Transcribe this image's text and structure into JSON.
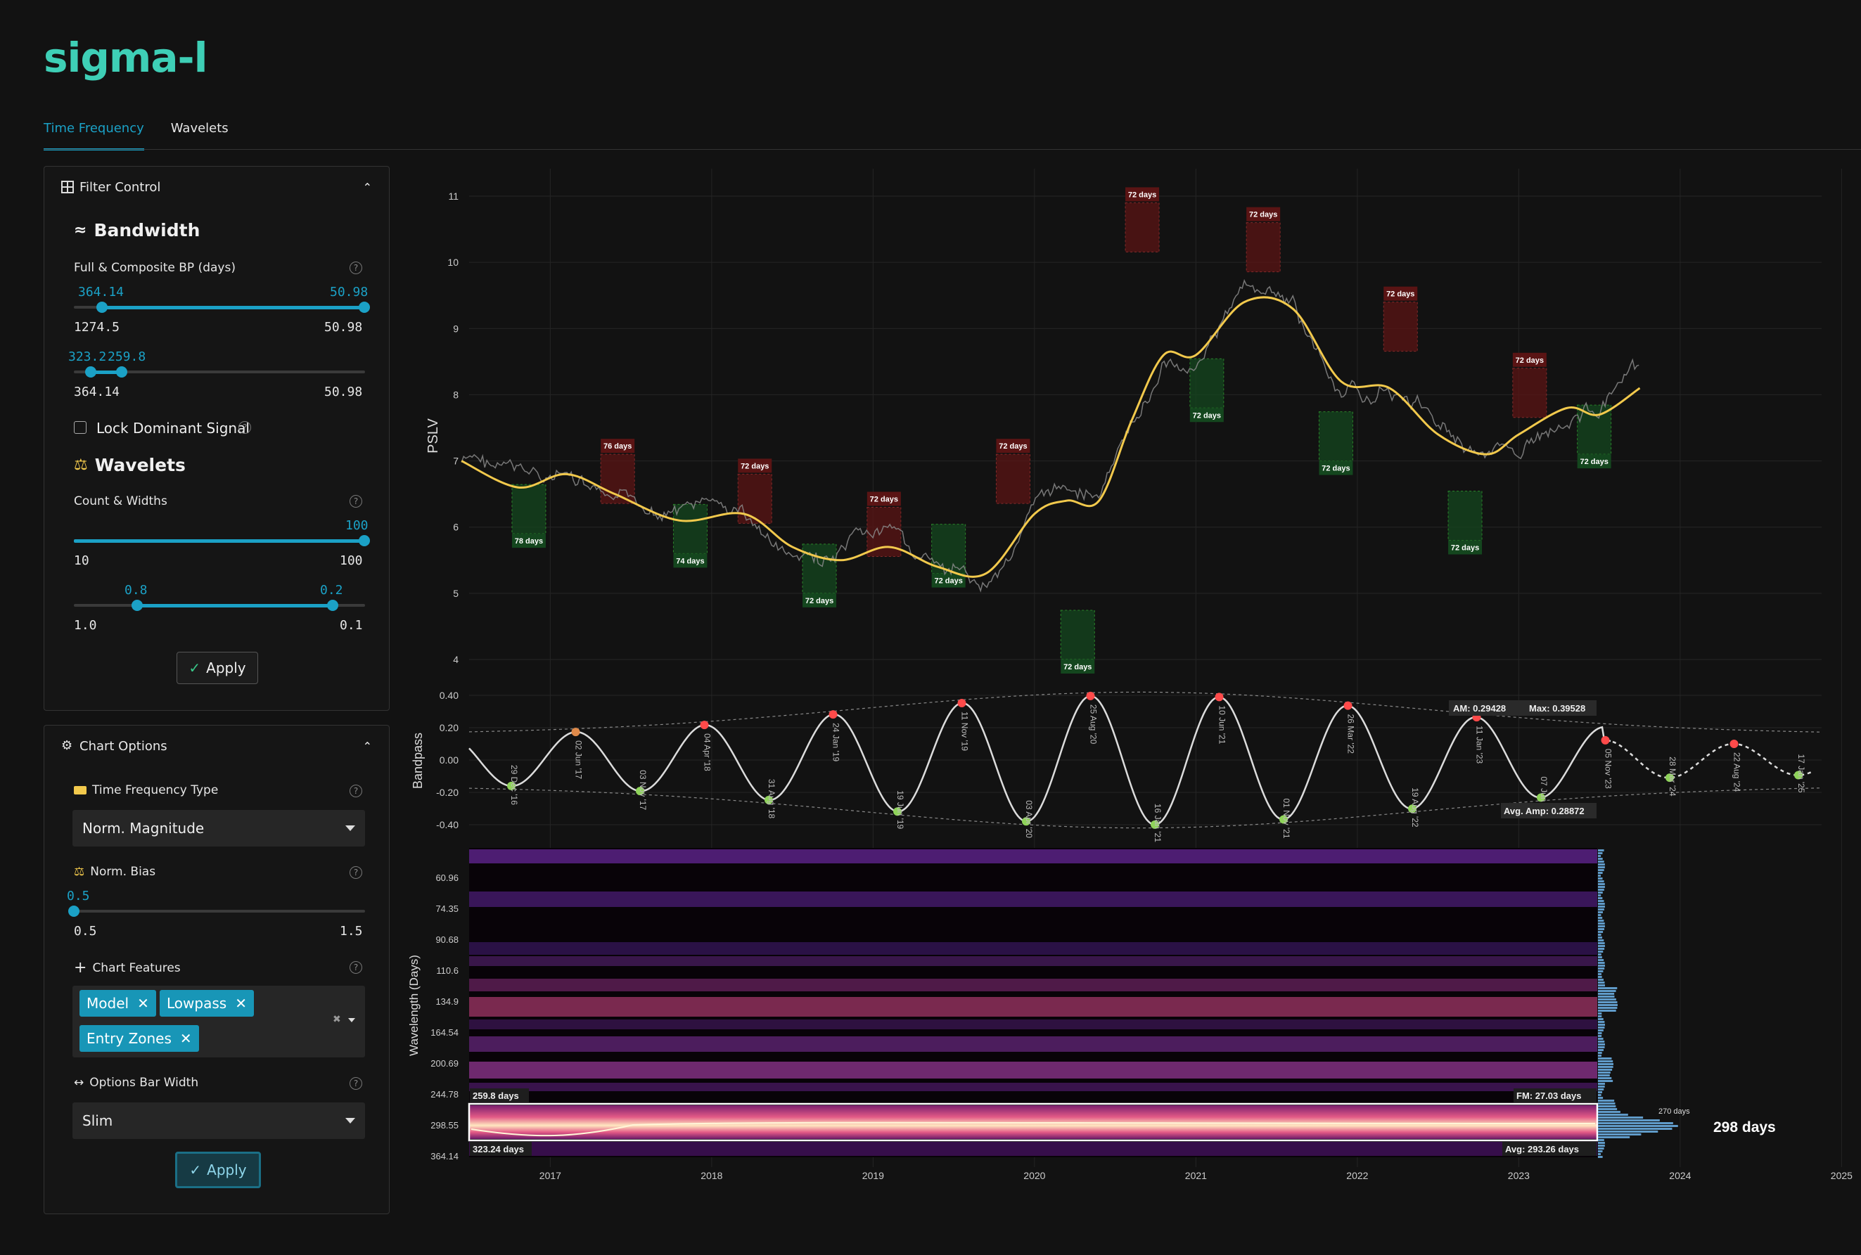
{
  "app": {
    "logo": "sigma-l"
  },
  "tabs": [
    {
      "label": "Time Frequency"
    },
    {
      "label": "Wavelets"
    }
  ],
  "filter_control": {
    "title": "Filter Control",
    "bandwidth": {
      "title": "Bandwidth",
      "full_composite_label": "Full & Composite BP (days)",
      "slider1": {
        "low_value": "364.14",
        "high_value": "50.98",
        "min_label": "1274.5",
        "max_label": "50.98"
      },
      "slider2": {
        "low_value": "323.2",
        "high_value": "259.8",
        "min_label": "364.14",
        "max_label": "50.98"
      },
      "lock_label": "Lock Dominant Signal"
    },
    "wavelets": {
      "title": "Wavelets",
      "count_widths_label": "Count & Widths",
      "slider1": {
        "value": "100",
        "min_label": "10",
        "max_label": "100"
      },
      "slider2": {
        "low_value": "0.8",
        "high_value": "0.2",
        "min_label": "1.0",
        "max_label": "0.1"
      }
    },
    "apply_label": "Apply"
  },
  "chart_options": {
    "title": "Chart Options",
    "tf_type_label": "Time Frequency Type",
    "tf_type_value": "Norm. Magnitude",
    "norm_bias_label": "Norm. Bias",
    "norm_bias": {
      "value": "0.5",
      "min_label": "0.5",
      "max_label": "1.5"
    },
    "chart_features_label": "Chart Features",
    "chart_features": [
      "Model",
      "Lowpass",
      "Entry Zones"
    ],
    "bar_width_label": "Options Bar Width",
    "bar_width_value": "Slim",
    "apply_label": "Apply"
  },
  "chart_data": [
    {
      "type": "line",
      "ylabel": "PSLV",
      "ylim": [
        4,
        11
      ],
      "yticks": [
        "4",
        "5",
        "6",
        "7",
        "8",
        "9",
        "10",
        "11"
      ],
      "x_ticks": [
        "2017",
        "2018",
        "2019",
        "2020",
        "2021",
        "2022",
        "2023",
        "2024",
        "2025"
      ],
      "series": [
        {
          "x": [
            2016.45,
            2016.8,
            2017.1,
            2017.4,
            2017.8,
            2018.2,
            2018.5,
            2018.8,
            2019.1,
            2019.4,
            2019.7,
            2020.0,
            2020.2,
            2020.4,
            2020.6,
            2020.8,
            2021.0,
            2021.3,
            2021.6,
            2021.9,
            2022.2,
            2022.5,
            2022.8,
            2023.0,
            2023.3,
            2023.5,
            2023.75
          ],
          "values": [
            7.0,
            6.6,
            6.8,
            6.5,
            6.1,
            6.2,
            5.7,
            5.5,
            5.7,
            5.4,
            5.3,
            6.2,
            6.4,
            6.4,
            7.6,
            8.6,
            8.6,
            9.4,
            9.3,
            8.2,
            8.1,
            7.4,
            7.1,
            7.4,
            7.8,
            7.7,
            8.1
          ]
        }
      ],
      "annotations": [
        {
          "label": "76 days",
          "kind": "top",
          "x": 2017.4,
          "y": 7.1
        },
        {
          "label": "72 days",
          "kind": "top",
          "x": 2018.25,
          "y": 6.8
        },
        {
          "label": "72 days",
          "kind": "top",
          "x": 2019.05,
          "y": 6.3
        },
        {
          "label": "72 days",
          "kind": "top",
          "x": 2019.85,
          "y": 7.1
        },
        {
          "label": "72 days",
          "kind": "top",
          "x": 2020.65,
          "y": 10.9
        },
        {
          "label": "72 days",
          "kind": "top",
          "x": 2021.4,
          "y": 10.6
        },
        {
          "label": "72 days",
          "kind": "top",
          "x": 2022.25,
          "y": 9.4
        },
        {
          "label": "72 days",
          "kind": "top",
          "x": 2023.05,
          "y": 8.4
        },
        {
          "label": "78 days",
          "kind": "bottom",
          "x": 2016.85,
          "y": 5.9
        },
        {
          "label": "74 days",
          "kind": "bottom",
          "x": 2017.85,
          "y": 5.6
        },
        {
          "label": "72 days",
          "kind": "bottom",
          "x": 2018.65,
          "y": 5.0
        },
        {
          "label": "72 days",
          "kind": "bottom",
          "x": 2019.45,
          "y": 5.3
        },
        {
          "label": "72 days",
          "kind": "bottom",
          "x": 2020.25,
          "y": 4.0
        },
        {
          "label": "72 days",
          "kind": "bottom",
          "x": 2021.05,
          "y": 7.8
        },
        {
          "label": "72 days",
          "kind": "bottom",
          "x": 2021.85,
          "y": 7.0
        },
        {
          "label": "72 days",
          "kind": "bottom",
          "x": 2022.65,
          "y": 5.8
        },
        {
          "label": "72 days",
          "kind": "bottom",
          "x": 2023.45,
          "y": 7.1
        }
      ]
    },
    {
      "type": "line",
      "ylabel": "Bandpass",
      "ylim": [
        -0.45,
        0.45
      ],
      "yticks": [
        "0.40",
        "0.20",
        "0.00",
        "-0.20",
        "-0.40"
      ],
      "labels": [
        "29 Dec '16",
        "02 Jun '17",
        "03 Nov '17",
        "04 Apr '18",
        "31 Aug '18",
        "24 Jan '19",
        "19 Jun '19",
        "11 Nov '19",
        "03 Apr '20",
        "25 Aug '20",
        "16 Jan '21",
        "10 Jun '21",
        "01 Nov '21",
        "26 Mar '22",
        "19 Aug '22",
        "11 Jan '23",
        "07 Jun '23",
        "05 Nov '23",
        "28 Mar '24",
        "22 Aug '24",
        "17 Jan '25"
      ],
      "am_label": "AM: 0.29428",
      "max_label": "Max: 0.39528",
      "avg_amp_label": "Avg. Amp: 0.28872"
    },
    {
      "type": "heatmap",
      "ylabel": "Wavelength (Days)",
      "yticks": [
        "60.96",
        "74.35",
        "90.68",
        "110.6",
        "134.9",
        "164.54",
        "200.69",
        "244.78",
        "298.55",
        "364.14"
      ],
      "band_top_label": "259.8 days",
      "band_bottom_label": "323.24 days",
      "fm_label": "FM: 27.03 days",
      "avg_label": "Avg: 293.26 days",
      "dominant_label": "298 days",
      "hist_label": "270 days"
    }
  ],
  "colors": {
    "accent": "#1ba1c6",
    "price_line": "#f2c94c",
    "top_zone": "#5a1414",
    "bottom_zone": "#14461e"
  }
}
